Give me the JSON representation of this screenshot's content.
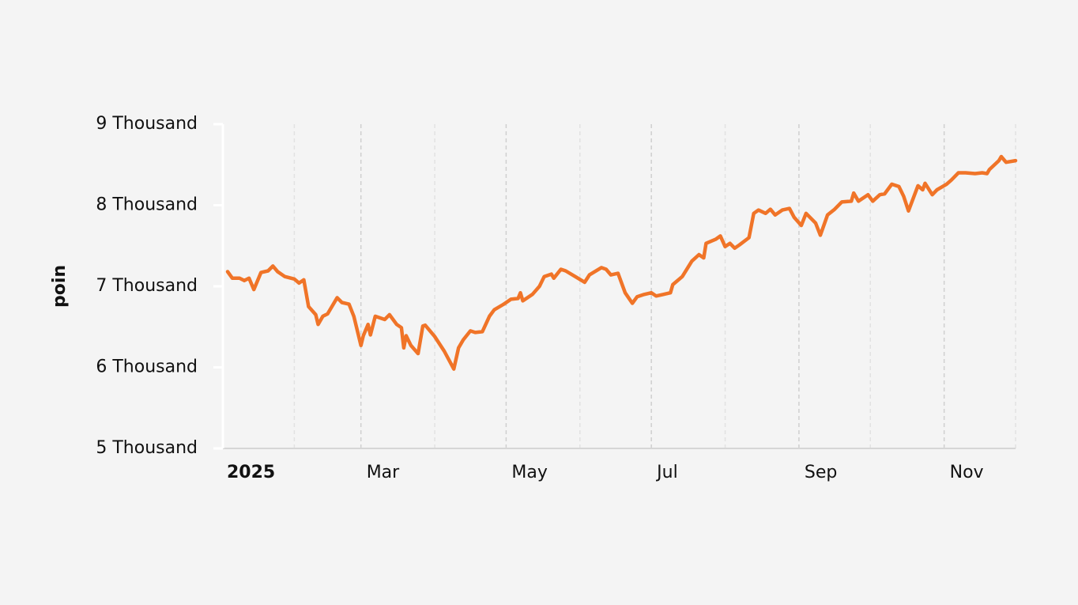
{
  "chart_data": {
    "type": "line",
    "ylabel": "poin",
    "color": "#f07428",
    "x": [
      "2025-01-04",
      "2025-01-06",
      "2025-01-09",
      "2025-01-11",
      "2025-01-13",
      "2025-01-15",
      "2025-01-18",
      "2025-01-21",
      "2025-01-23",
      "2025-01-25",
      "2025-01-28",
      "2025-02-01",
      "2025-02-03",
      "2025-02-05",
      "2025-02-07",
      "2025-02-10",
      "2025-02-11",
      "2025-02-13",
      "2025-02-15",
      "2025-02-19",
      "2025-02-21",
      "2025-02-24",
      "2025-02-26",
      "2025-03-01",
      "2025-03-02",
      "2025-03-04",
      "2025-03-05",
      "2025-03-07",
      "2025-03-11",
      "2025-03-13",
      "2025-03-16",
      "2025-03-18",
      "2025-03-19",
      "2025-03-20",
      "2025-03-22",
      "2025-03-25",
      "2025-03-27",
      "2025-03-28",
      "2025-04-01",
      "2025-04-05",
      "2025-04-09",
      "2025-04-11",
      "2025-04-13",
      "2025-04-16",
      "2025-04-18",
      "2025-04-21",
      "2025-04-24",
      "2025-04-26",
      "2025-04-30",
      "2025-05-03",
      "2025-05-06",
      "2025-05-07",
      "2025-05-08",
      "2025-05-12",
      "2025-05-15",
      "2025-05-17",
      "2025-05-20",
      "2025-05-21",
      "2025-05-24",
      "2025-05-26",
      "2025-05-30",
      "2025-06-03",
      "2025-06-05",
      "2025-06-10",
      "2025-06-12",
      "2025-06-14",
      "2025-06-17",
      "2025-06-20",
      "2025-06-23",
      "2025-06-25",
      "2025-06-28",
      "2025-07-01",
      "2025-07-03",
      "2025-07-06",
      "2025-07-09",
      "2025-07-10",
      "2025-07-14",
      "2025-07-18",
      "2025-07-21",
      "2025-07-23",
      "2025-07-24",
      "2025-07-28",
      "2025-07-30",
      "2025-08-01",
      "2025-08-03",
      "2025-08-05",
      "2025-08-07",
      "2025-08-11",
      "2025-08-13",
      "2025-08-15",
      "2025-08-18",
      "2025-08-20",
      "2025-08-22",
      "2025-08-25",
      "2025-08-28",
      "2025-08-30",
      "2025-09-02",
      "2025-09-04",
      "2025-09-08",
      "2025-09-10",
      "2025-09-13",
      "2025-09-16",
      "2025-09-19",
      "2025-09-23",
      "2025-09-24",
      "2025-09-26",
      "2025-09-30",
      "2025-10-02",
      "2025-10-05",
      "2025-10-07",
      "2025-10-10",
      "2025-10-13",
      "2025-10-15",
      "2025-10-17",
      "2025-10-21",
      "2025-10-23",
      "2025-10-24",
      "2025-10-27",
      "2025-10-29",
      "2025-11-02",
      "2025-11-04",
      "2025-11-07",
      "2025-11-10",
      "2025-11-14",
      "2025-11-17",
      "2025-11-19",
      "2025-11-20",
      "2025-11-24",
      "2025-11-25",
      "2025-11-27",
      "2025-12-01"
    ],
    "values": [
      7180,
      7100,
      7100,
      7070,
      7100,
      6960,
      7170,
      7190,
      7250,
      7180,
      7120,
      7090,
      7040,
      7080,
      6750,
      6650,
      6530,
      6630,
      6660,
      6860,
      6800,
      6780,
      6630,
      6270,
      6390,
      6530,
      6400,
      6630,
      6590,
      6650,
      6530,
      6490,
      6240,
      6390,
      6270,
      6170,
      6510,
      6520,
      6380,
      6200,
      5980,
      6240,
      6340,
      6450,
      6430,
      6440,
      6630,
      6710,
      6780,
      6840,
      6850,
      6920,
      6820,
      6900,
      7000,
      7120,
      7150,
      7100,
      7210,
      7190,
      7120,
      7050,
      7140,
      7230,
      7210,
      7140,
      7160,
      6920,
      6790,
      6870,
      6900,
      6920,
      6880,
      6900,
      6920,
      7020,
      7120,
      7310,
      7390,
      7350,
      7530,
      7580,
      7620,
      7490,
      7530,
      7470,
      7510,
      7600,
      7900,
      7940,
      7900,
      7950,
      7880,
      7940,
      7960,
      7850,
      7750,
      7900,
      7780,
      7630,
      7880,
      7950,
      8040,
      8050,
      8150,
      8050,
      8130,
      8050,
      8130,
      8140,
      8260,
      8230,
      8110,
      7930,
      8240,
      8190,
      8270,
      8130,
      8190,
      8260,
      8310,
      8400,
      8400,
      8390,
      8400,
      8390,
      8440,
      8550,
      8600,
      8530,
      8550
    ],
    "xlim": [
      "2025-01-02",
      "2025-12-01"
    ],
    "xticks": [
      {
        "value": "2025-01-01",
        "label": "2025"
      },
      {
        "value": "2025-03-01",
        "label": "Mar"
      },
      {
        "value": "2025-05-01",
        "label": "May"
      },
      {
        "value": "2025-07-01",
        "label": "Jul"
      },
      {
        "value": "2025-09-01",
        "label": "Sep"
      },
      {
        "value": "2025-11-01",
        "label": "Nov"
      }
    ],
    "xminor": [
      "2025-02-01",
      "2025-04-01",
      "2025-06-01",
      "2025-08-01",
      "2025-10-01",
      "2025-12-01"
    ],
    "ylim": [
      5000,
      9000
    ],
    "yticks": [
      {
        "value": 5000,
        "label": "5 Thousand"
      },
      {
        "value": 6000,
        "label": "6 Thousand"
      },
      {
        "value": 7000,
        "label": "7 Thousand"
      },
      {
        "value": 8000,
        "label": "8 Thousand"
      },
      {
        "value": 9000,
        "label": "9 Thousand"
      }
    ],
    "grid": true
  }
}
